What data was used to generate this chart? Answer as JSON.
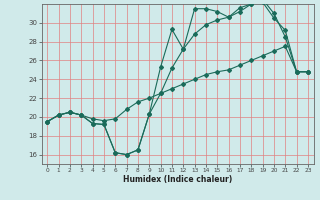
{
  "xlabel": "Humidex (Indice chaleur)",
  "bg_color": "#d0eaea",
  "grid_color": "#e08080",
  "line_color": "#1a6b5a",
  "xlim": [
    -0.5,
    23.5
  ],
  "ylim": [
    15.0,
    32.0
  ],
  "yticks": [
    16,
    18,
    20,
    22,
    24,
    26,
    28,
    30
  ],
  "xticks": [
    0,
    1,
    2,
    3,
    4,
    5,
    6,
    7,
    8,
    9,
    10,
    11,
    12,
    13,
    14,
    15,
    16,
    17,
    18,
    19,
    20,
    21,
    22,
    23
  ],
  "series1_x": [
    0,
    1,
    2,
    3,
    4,
    5,
    6,
    7,
    8,
    9,
    10,
    11,
    12,
    13,
    14,
    15,
    16,
    17,
    18,
    19,
    20,
    21,
    22,
    23
  ],
  "series1_y": [
    19.5,
    20.2,
    20.5,
    20.2,
    19.3,
    19.2,
    16.2,
    16.0,
    16.5,
    20.3,
    25.3,
    29.3,
    27.2,
    31.5,
    31.5,
    31.2,
    30.6,
    31.6,
    32.0,
    32.2,
    30.5,
    29.2,
    24.8,
    24.8
  ],
  "series2_x": [
    0,
    1,
    2,
    3,
    4,
    5,
    6,
    7,
    8,
    9,
    10,
    11,
    12,
    13,
    14,
    15,
    16,
    17,
    18,
    19,
    20,
    21,
    22,
    23
  ],
  "series2_y": [
    19.5,
    20.2,
    20.5,
    20.2,
    19.3,
    19.2,
    16.2,
    16.0,
    16.5,
    20.3,
    22.5,
    25.2,
    27.2,
    28.8,
    29.8,
    30.3,
    30.6,
    31.2,
    32.0,
    32.5,
    31.0,
    28.5,
    24.8,
    24.8
  ],
  "series3_x": [
    0,
    1,
    2,
    3,
    4,
    5,
    6,
    7,
    8,
    9,
    10,
    11,
    12,
    13,
    14,
    15,
    16,
    17,
    18,
    19,
    20,
    21,
    22,
    23
  ],
  "series3_y": [
    19.5,
    20.2,
    20.5,
    20.2,
    19.8,
    19.6,
    19.8,
    20.8,
    21.6,
    22.0,
    22.5,
    23.0,
    23.5,
    24.0,
    24.5,
    24.8,
    25.0,
    25.5,
    26.0,
    26.5,
    27.0,
    27.5,
    24.8,
    24.8
  ]
}
